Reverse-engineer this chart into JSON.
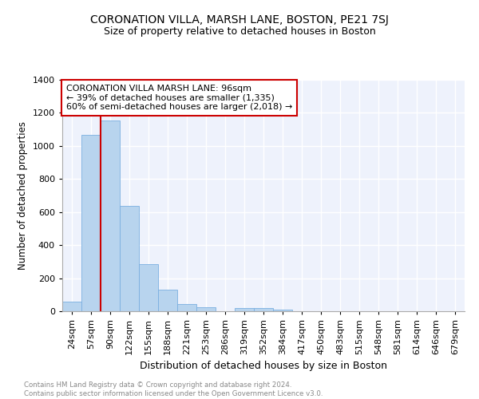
{
  "title": "CORONATION VILLA, MARSH LANE, BOSTON, PE21 7SJ",
  "subtitle": "Size of property relative to detached houses in Boston",
  "xlabel": "Distribution of detached houses by size in Boston",
  "ylabel": "Number of detached properties",
  "categories": [
    "24sqm",
    "57sqm",
    "90sqm",
    "122sqm",
    "155sqm",
    "188sqm",
    "221sqm",
    "253sqm",
    "286sqm",
    "319sqm",
    "352sqm",
    "384sqm",
    "417sqm",
    "450sqm",
    "483sqm",
    "515sqm",
    "548sqm",
    "581sqm",
    "614sqm",
    "646sqm",
    "679sqm"
  ],
  "values": [
    60,
    1065,
    1155,
    635,
    285,
    130,
    45,
    22,
    0,
    20,
    20,
    10,
    0,
    0,
    0,
    0,
    0,
    0,
    0,
    0,
    0
  ],
  "bar_color": "#b8d4ee",
  "bar_edge_color": "#7aafe0",
  "vline_x_index": 2,
  "vline_color": "#cc0000",
  "annotation_text": "CORONATION VILLA MARSH LANE: 96sqm\n← 39% of detached houses are smaller (1,335)\n60% of semi-detached houses are larger (2,018) →",
  "annotation_box_facecolor": "#ffffff",
  "annotation_box_edgecolor": "#cc0000",
  "ylim": [
    0,
    1400
  ],
  "yticks": [
    0,
    200,
    400,
    600,
    800,
    1000,
    1200,
    1400
  ],
  "background_color": "#eef2fc",
  "grid_color": "#ffffff",
  "footnote": "Contains HM Land Registry data © Crown copyright and database right 2024.\nContains public sector information licensed under the Open Government Licence v3.0.",
  "title_fontsize": 10,
  "subtitle_fontsize": 9,
  "xlabel_fontsize": 9,
  "ylabel_fontsize": 8.5,
  "tick_fontsize": 8,
  "annotation_fontsize": 8
}
